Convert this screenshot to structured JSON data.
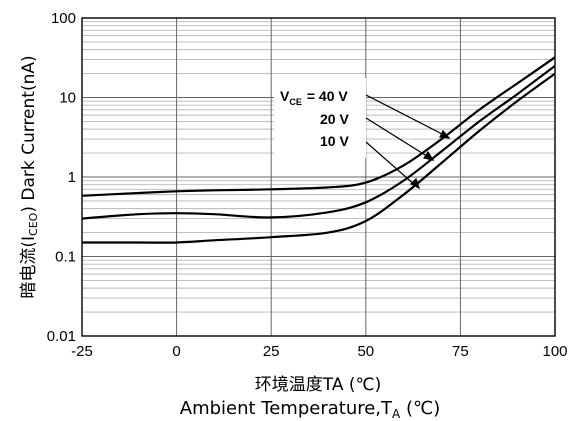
{
  "chart_data": {
    "type": "line",
    "yscale": "log",
    "ylim": [
      0.01,
      100
    ],
    "xlim": [
      -25,
      100
    ],
    "x_ticks": [
      "-25",
      "0",
      "25",
      "50",
      "75",
      "100"
    ],
    "y_ticks": [
      "100",
      "10",
      "1",
      "0.1",
      "0.01"
    ],
    "ylabel": {
      "prefix": "暗电流(I",
      "sub": "CEO",
      "suffix": ") Dark Current(nA)"
    },
    "xlabel": {
      "line1": "环境温度TA (℃)",
      "line2_main": "Ambient Temperature,T",
      "line2_sub": "A",
      "line2_unit": " (℃)"
    },
    "annotation": {
      "prefix": "V",
      "sub": "CE",
      "labels": [
        "= 40 V",
        "20 V",
        "10 V"
      ]
    },
    "series": [
      {
        "name": "40 V",
        "x": [
          -25,
          -10,
          0,
          10,
          25,
          40,
          50,
          60,
          70,
          80,
          90,
          100
        ],
        "y": [
          0.58,
          0.63,
          0.66,
          0.68,
          0.7,
          0.74,
          0.85,
          1.4,
          3.0,
          7.0,
          15,
          32
        ]
      },
      {
        "name": "20 V",
        "x": [
          -25,
          -10,
          0,
          10,
          25,
          40,
          50,
          60,
          70,
          80,
          90,
          100
        ],
        "y": [
          0.3,
          0.34,
          0.35,
          0.34,
          0.31,
          0.36,
          0.48,
          0.9,
          2.1,
          5.0,
          11,
          25
        ]
      },
      {
        "name": "10 V",
        "x": [
          -25,
          -10,
          0,
          10,
          25,
          40,
          50,
          60,
          70,
          80,
          90,
          100
        ],
        "y": [
          0.15,
          0.15,
          0.15,
          0.16,
          0.175,
          0.2,
          0.28,
          0.6,
          1.5,
          3.8,
          9,
          20
        ]
      }
    ],
    "grid": true
  }
}
